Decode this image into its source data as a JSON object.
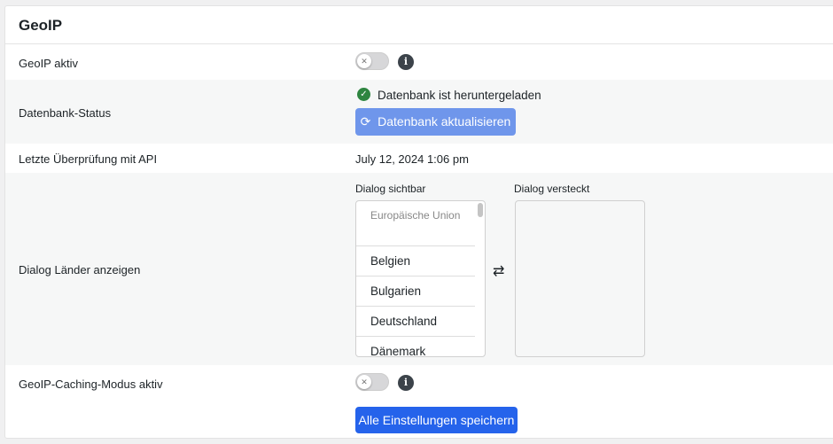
{
  "title": "GeoIP",
  "rows": {
    "geoip_active": {
      "label": "GeoIP aktiv",
      "toggle_on": false
    },
    "db_status": {
      "label": "Datenbank-Status",
      "status": "Datenbank ist heruntergeladen",
      "button": "Datenbank aktualisieren"
    },
    "last_check": {
      "label": "Letzte Überprüfung mit API",
      "value": "July 12, 2024 1:06 pm"
    },
    "dialog": {
      "label": "Dialog Länder anzeigen",
      "visible_title": "Dialog sichtbar",
      "hidden_title": "Dialog versteckt",
      "visible_items": [
        "Europäische Union",
        "Belgien",
        "Bulgarien",
        "Deutschland",
        "Dänemark"
      ],
      "hidden_items": []
    },
    "caching": {
      "label": "GeoIP-Caching-Modus aktiv",
      "toggle_on": false
    }
  },
  "save_button": "Alle Einstellungen speichern",
  "colors": {
    "primary": "#2563eb",
    "update_button": "#6f96eb",
    "success": "#2e8540"
  }
}
